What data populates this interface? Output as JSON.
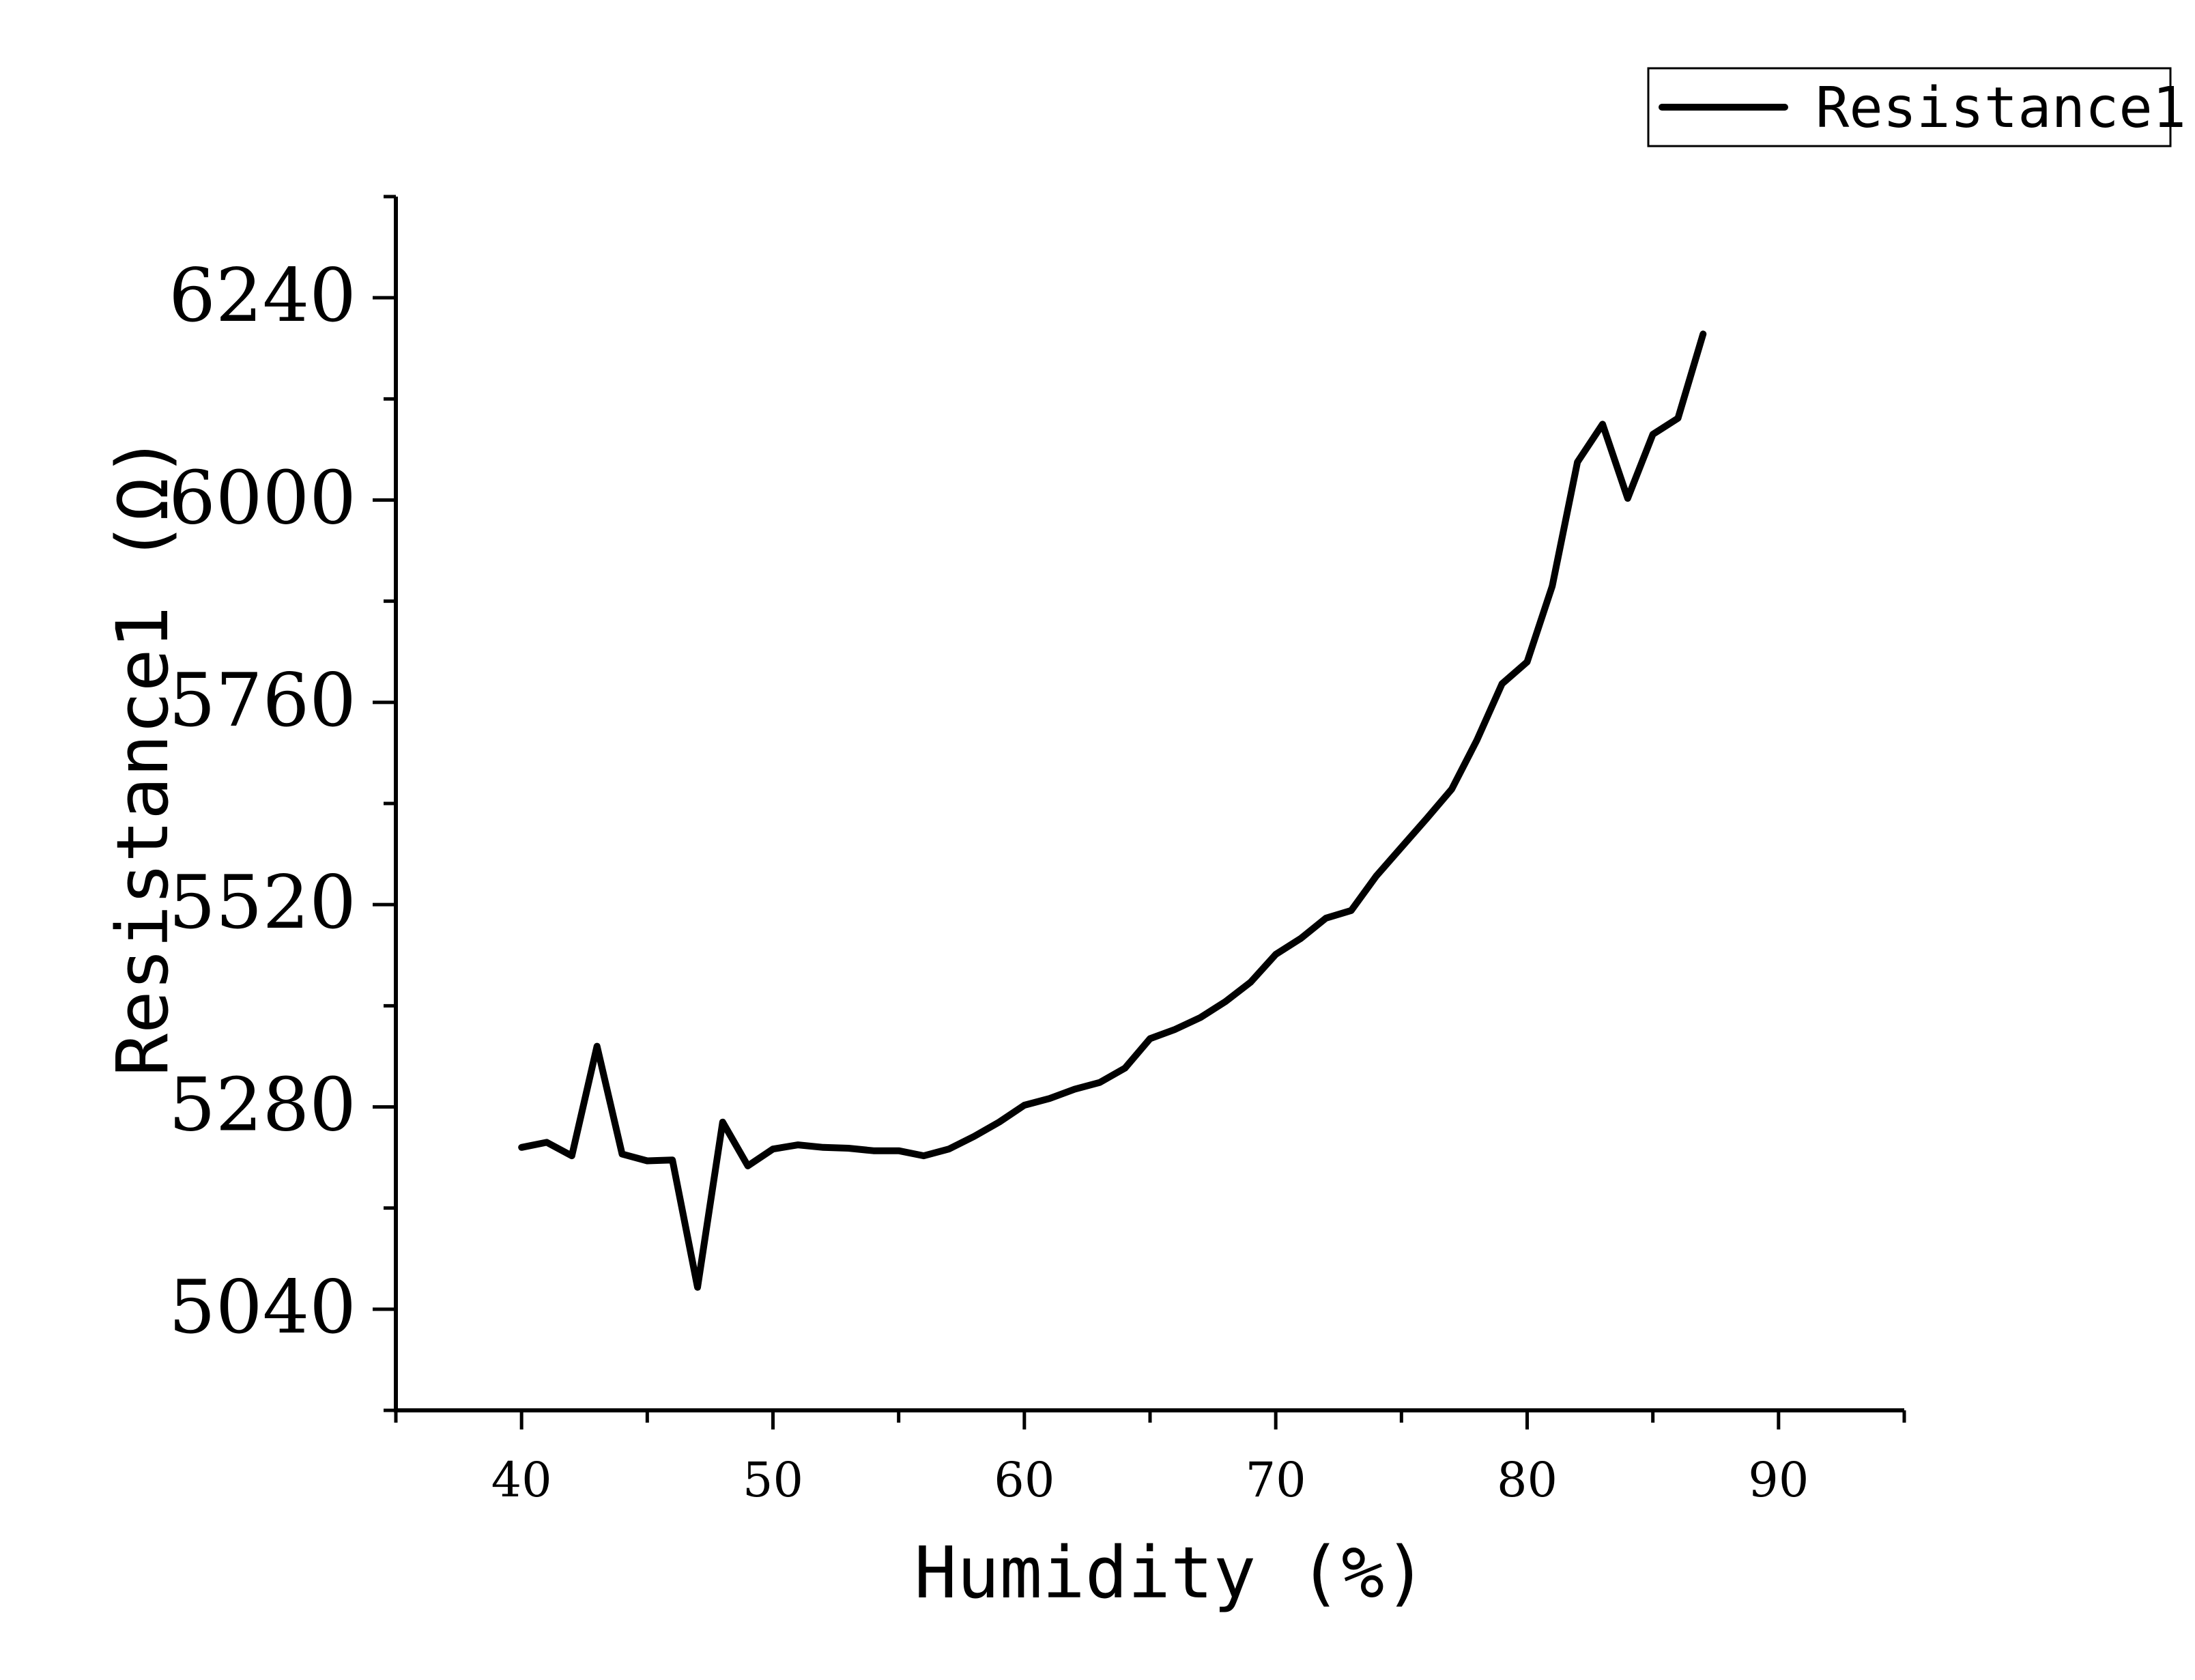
{
  "chart_data": {
    "type": "line",
    "xlabel": "Humidity (%)",
    "ylabel": "Resistance1 (Ω)",
    "xlim": [
      35,
      95
    ],
    "ylim": [
      4920,
      6360
    ],
    "x_ticks": [
      40,
      50,
      60,
      70,
      80,
      90
    ],
    "y_ticks": [
      5040,
      5280,
      5520,
      5760,
      6000,
      6240
    ],
    "x_tick_labels": [
      "40",
      "50",
      "60",
      "70",
      "80",
      "90"
    ],
    "y_tick_labels": [
      "5040",
      "5280",
      "5520",
      "5760",
      "6000",
      "6240"
    ],
    "grid": false,
    "legend_position": "top-right",
    "line_color": "#000000",
    "series": [
      {
        "name": "Resistance1",
        "x": [
          40,
          41,
          42,
          43,
          44,
          45,
          46,
          47,
          48,
          49,
          50,
          51,
          52,
          53,
          54,
          55,
          56,
          57,
          58,
          59,
          60,
          61,
          62,
          63,
          64,
          65,
          66,
          67,
          68,
          69,
          70,
          71,
          72,
          73,
          74,
          75,
          76,
          77,
          78,
          79,
          80,
          81,
          82,
          83,
          84,
          85,
          86,
          87
        ],
        "values": [
          5232,
          5238,
          5222,
          5352,
          5224,
          5216,
          5217,
          5066,
          5262,
          5210,
          5230,
          5235,
          5232,
          5231,
          5228,
          5228,
          5222,
          5230,
          5245,
          5262,
          5282,
          5290,
          5301,
          5309,
          5326,
          5361,
          5372,
          5386,
          5405,
          5428,
          5461,
          5480,
          5504,
          5513,
          5554,
          5588,
          5622,
          5657,
          5715,
          5782,
          5808,
          5898,
          6045,
          6090,
          6002,
          6078,
          6097,
          6197
        ]
      }
    ]
  }
}
